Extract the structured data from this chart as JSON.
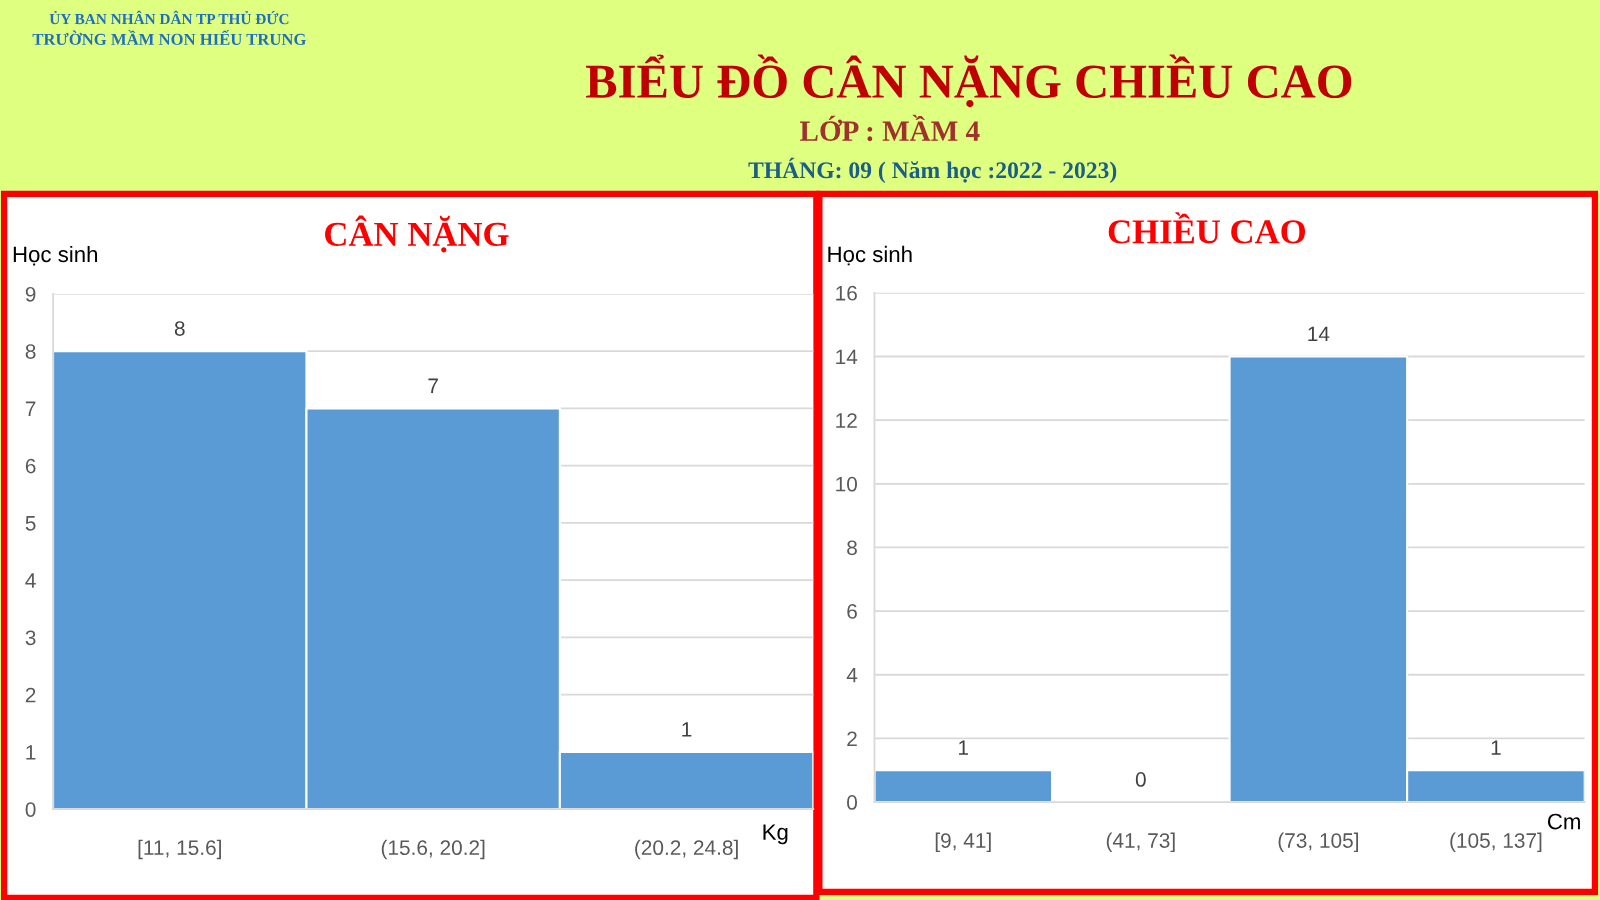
{
  "chart_data": [
    {
      "type": "bar",
      "title": "CÂN NẶNG",
      "ylabel": "Học sinh",
      "xlabel": "Kg",
      "categories": [
        "[11, 15.6]",
        "(15.6, 20.2]",
        "(20.2, 24.8]"
      ],
      "values": [
        8,
        7,
        1
      ],
      "color": "#5b9bd5",
      "ylim": [
        0,
        9
      ],
      "yticks": [
        0,
        1,
        2,
        3,
        4,
        5,
        6,
        7,
        8,
        9
      ],
      "grid": "y",
      "data_labels": true,
      "annotations": [
        "ỦY BAN NHÂN DÂN TP THỦ ĐỨC",
        "TRƯỜNG MẦM NON HIẾU TRUNG",
        "BIỂU ĐỒ CÂN NẶNG CHIỀU CAO",
        "LỚP : MẦM 4",
        "THÁNG: 09 ( Năm học :2022 - 2023)"
      ]
    },
    {
      "type": "bar",
      "title": "CHIỀU CAO",
      "ylabel": "Học sinh",
      "xlabel": "Cm",
      "categories": [
        "[9, 41]",
        "(41, 73]",
        "(73, 105]",
        "(105, 137]"
      ],
      "values": [
        1,
        0,
        14,
        1
      ],
      "color": "#5b9bd5",
      "ylim": [
        0,
        16
      ],
      "yticks": [
        0,
        2,
        4,
        6,
        8,
        10,
        12,
        14,
        16
      ],
      "grid": "y",
      "data_labels": true
    }
  ]
}
